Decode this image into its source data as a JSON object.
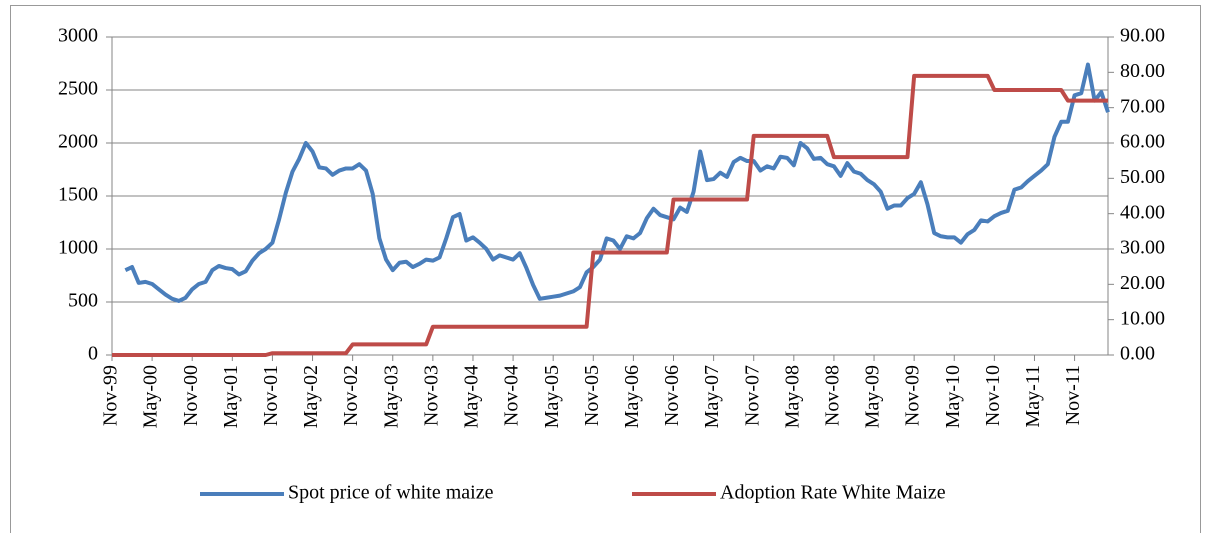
{
  "chart_data": {
    "type": "line",
    "categories": [
      "Nov-99",
      null,
      null,
      null,
      null,
      null,
      "May-00",
      null,
      null,
      null,
      null,
      null,
      "Nov-00",
      null,
      null,
      null,
      null,
      null,
      "May-01",
      null,
      null,
      null,
      null,
      null,
      "Nov-01",
      null,
      null,
      null,
      null,
      null,
      "May-02",
      null,
      null,
      null,
      null,
      null,
      "Nov-02",
      null,
      null,
      null,
      null,
      null,
      "May-03",
      null,
      null,
      null,
      null,
      null,
      "Nov-03",
      null,
      null,
      null,
      null,
      null,
      "May-04",
      null,
      null,
      null,
      null,
      null,
      "Nov-04",
      null,
      null,
      null,
      null,
      null,
      "May-05",
      null,
      null,
      null,
      null,
      null,
      "Nov-05",
      null,
      null,
      null,
      null,
      null,
      "May-06",
      null,
      null,
      null,
      null,
      null,
      "Nov-06",
      null,
      null,
      null,
      null,
      null,
      "May-07",
      null,
      null,
      null,
      null,
      null,
      "Nov-07",
      null,
      null,
      null,
      null,
      null,
      "May-08",
      null,
      null,
      null,
      null,
      null,
      "Nov-08",
      null,
      null,
      null,
      null,
      null,
      "May-09",
      null,
      null,
      null,
      null,
      null,
      "Nov-09",
      null,
      null,
      null,
      null,
      null,
      "May-10",
      null,
      null,
      null,
      null,
      null,
      "Nov-10",
      null,
      null,
      null,
      null,
      null,
      "May-11",
      null,
      null,
      null,
      null,
      null,
      "Nov-11",
      null,
      null,
      null,
      null,
      null
    ],
    "series": [
      {
        "name": "Spot price of white maize",
        "color": "#4a7ebb",
        "values": [
          null,
          null,
          800,
          830,
          680,
          690,
          670,
          620,
          570,
          530,
          510,
          540,
          620,
          670,
          690,
          800,
          840,
          820,
          810,
          760,
          790,
          890,
          960,
          1000,
          1060,
          1280,
          1530,
          1730,
          1850,
          2000,
          1920,
          1770,
          1760,
          1700,
          1740,
          1760,
          1760,
          1800,
          1740,
          1520,
          1100,
          900,
          800,
          870,
          880,
          830,
          860,
          900,
          890,
          920,
          1100,
          1300,
          1330,
          1080,
          1110,
          1060,
          1000,
          900,
          940,
          920,
          900,
          960,
          820,
          660,
          530,
          540,
          550,
          560,
          580,
          600,
          640,
          780,
          830,
          900,
          1100,
          1080,
          1000,
          1120,
          1100,
          1150,
          1290,
          1380,
          1320,
          1300,
          1280,
          1390,
          1350,
          1540,
          1920,
          1650,
          1660,
          1720,
          1680,
          1820,
          1860,
          1830,
          1830,
          1740,
          1780,
          1760,
          1870,
          1860,
          1790,
          2000,
          1950,
          1850,
          1860,
          1800,
          1780,
          1690,
          1810,
          1730,
          1710,
          1650,
          1610,
          1540,
          1380,
          1410,
          1410,
          1480,
          1520,
          1630,
          1420,
          1150,
          1120,
          1110,
          1110,
          1060,
          1140,
          1180,
          1270,
          1260,
          1310,
          1340,
          1360,
          1560,
          1580,
          1640,
          1690,
          1740,
          1800,
          2060,
          2200,
          2200,
          2450,
          2470,
          2740,
          2400,
          2480,
          2290
        ]
      },
      {
        "name": "Adoption Rate White Maize",
        "color": "#be4b48",
        "axis": "y2",
        "values": [
          0,
          0,
          0,
          0,
          0,
          0,
          0,
          0,
          0,
          0,
          0,
          0,
          0,
          0,
          0,
          0,
          0,
          0,
          0,
          0,
          0,
          0,
          0,
          0,
          0.5,
          0.5,
          0.5,
          0.5,
          0.5,
          0.5,
          0.5,
          0.5,
          0.5,
          0.5,
          0.5,
          0.5,
          3,
          3,
          3,
          3,
          3,
          3,
          3,
          3,
          3,
          3,
          3,
          3,
          8,
          8,
          8,
          8,
          8,
          8,
          8,
          8,
          8,
          8,
          8,
          8,
          8,
          8,
          8,
          8,
          8,
          8,
          8,
          8,
          8,
          8,
          8,
          8,
          29,
          29,
          29,
          29,
          29,
          29,
          29,
          29,
          29,
          29,
          29,
          29,
          44,
          44,
          44,
          44,
          44,
          44,
          44,
          44,
          44,
          44,
          44,
          44,
          62,
          62,
          62,
          62,
          62,
          62,
          62,
          62,
          62,
          62,
          62,
          62,
          56,
          56,
          56,
          56,
          56,
          56,
          56,
          56,
          56,
          56,
          56,
          56,
          79,
          79,
          79,
          79,
          79,
          79,
          79,
          79,
          79,
          79,
          79,
          79,
          75,
          75,
          75,
          75,
          75,
          75,
          75,
          75,
          75,
          75,
          75,
          72,
          72,
          72,
          72,
          72,
          72,
          72
        ]
      }
    ],
    "ylim": [
      0,
      3000
    ],
    "yticks": [
      0,
      500,
      1000,
      1500,
      2000,
      2500,
      3000
    ],
    "y2lim": [
      0,
      90
    ],
    "y2ticks": [
      {
        "value": 0,
        "label": "0.00"
      },
      {
        "value": 10,
        "label": "10.00"
      },
      {
        "value": 20,
        "label": "20.00"
      },
      {
        "value": 30,
        "label": "30.00"
      },
      {
        "value": 40,
        "label": "40.00"
      },
      {
        "value": 50,
        "label": "50.00"
      },
      {
        "value": 60,
        "label": "60.00"
      },
      {
        "value": 70,
        "label": "70.00"
      },
      {
        "value": 80,
        "label": "80.00"
      },
      {
        "value": 90,
        "label": "90.00"
      }
    ],
    "grid": true,
    "legend": "bottom"
  }
}
